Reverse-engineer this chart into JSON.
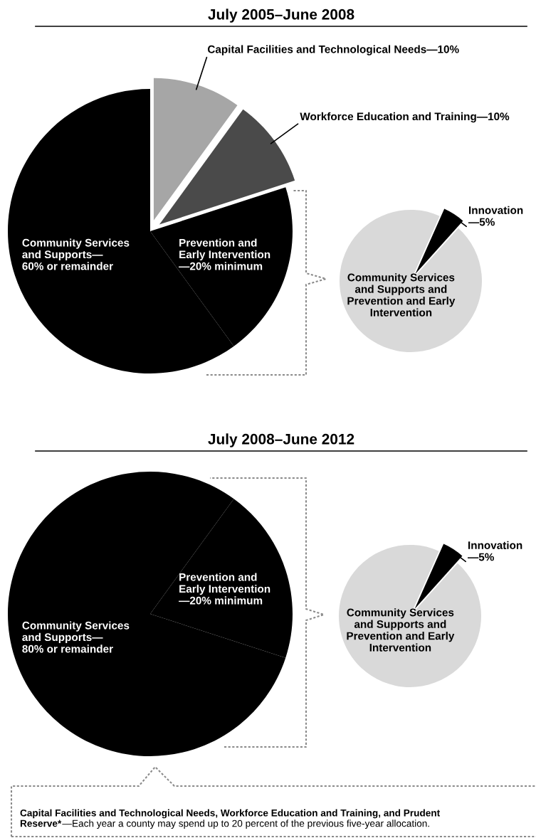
{
  "chart_data": [
    {
      "type": "pie",
      "title": "July 2005–June 2008",
      "categories": [
        "Capital Facilities and Technological Needs—10%",
        "Workforce Education and Training—10%",
        "Prevention and\nEarly Intervention\n—20% minimum",
        "Community Services\nand Supports—\n60% or remainder"
      ],
      "values": [
        10,
        10,
        20,
        60
      ],
      "colors": [
        "#a6a6a6",
        "#4a4a4a",
        "#000000",
        "#000000"
      ]
    },
    {
      "type": "pie",
      "categories": [
        "Innovation\n—5%",
        "Community Services\nand Supports and\nPrevention and Early\nIntervention"
      ],
      "values": [
        5,
        95
      ],
      "colors": [
        "#000000",
        "#d9d9d9"
      ]
    },
    {
      "type": "pie",
      "title": "July 2008–June 2012",
      "categories": [
        "Prevention and\nEarly Intervention\n—20% minimum",
        "Community Services\nand Supports—\n80% or remainder"
      ],
      "values": [
        20,
        80
      ],
      "colors": [
        "#000000",
        "#000000"
      ],
      "annotations": [
        "Capital Facilities and Technological Needs, Workforce Education and Training, and Prudent\nReserve*",
        "—Each year a county may spend up to 20 percent of the previous five-year allocation."
      ]
    },
    {
      "type": "pie",
      "categories": [
        "Innovation\n—5%",
        "Community Services\nand Supports and\nPrevention and Early\nIntervention"
      ],
      "values": [
        5,
        95
      ],
      "colors": [
        "#000000",
        "#d9d9d9"
      ]
    }
  ]
}
